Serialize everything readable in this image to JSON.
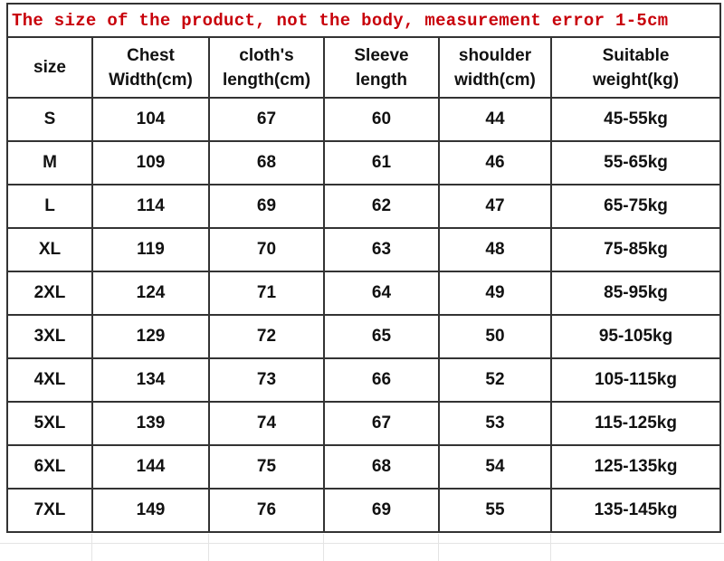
{
  "title": "The size of the product, not the body, measurement error 1-5cm",
  "colors": {
    "title": "#c8000a",
    "border": "#333333",
    "text": "#111111"
  },
  "table": {
    "headers": [
      [
        "size"
      ],
      [
        "Chest",
        "Width(cm)"
      ],
      [
        "cloth's",
        "length(cm)"
      ],
      [
        "Sleeve",
        "length"
      ],
      [
        "shoulder",
        "width(cm)"
      ],
      [
        "Suitable",
        "weight(kg)"
      ]
    ],
    "rows": [
      [
        "S",
        "104",
        "67",
        "60",
        "44",
        "45-55kg"
      ],
      [
        "M",
        "109",
        "68",
        "61",
        "46",
        "55-65kg"
      ],
      [
        "L",
        "114",
        "69",
        "62",
        "47",
        "65-75kg"
      ],
      [
        "XL",
        "119",
        "70",
        "63",
        "48",
        "75-85kg"
      ],
      [
        "2XL",
        "124",
        "71",
        "64",
        "49",
        "85-95kg"
      ],
      [
        "3XL",
        "129",
        "72",
        "65",
        "50",
        "95-105kg"
      ],
      [
        "4XL",
        "134",
        "73",
        "66",
        "52",
        "105-115kg"
      ],
      [
        "5XL",
        "139",
        "74",
        "67",
        "53",
        "115-125kg"
      ],
      [
        "6XL",
        "144",
        "75",
        "68",
        "54",
        "125-135kg"
      ],
      [
        "7XL",
        "149",
        "76",
        "69",
        "55",
        "135-145kg"
      ]
    ]
  }
}
